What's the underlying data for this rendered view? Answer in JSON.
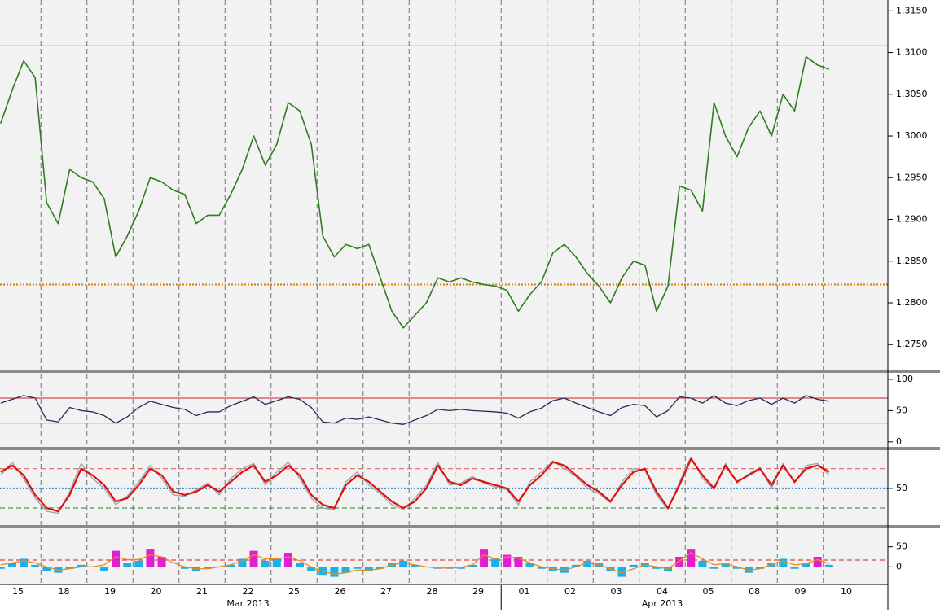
{
  "chart_data": [
    {
      "type": "line",
      "categories": [
        "15",
        null,
        null,
        null,
        "18",
        null,
        null,
        null,
        "19",
        null,
        null,
        null,
        "20",
        null,
        null,
        null,
        "21",
        null,
        null,
        null,
        "22",
        null,
        null,
        null,
        "25",
        null,
        null,
        null,
        "26",
        null,
        null,
        null,
        "27",
        null,
        null,
        null,
        "28",
        null,
        null,
        null,
        "29",
        null,
        null,
        null,
        "01",
        null,
        null,
        null,
        "02",
        null,
        null,
        null,
        "03",
        null,
        null,
        null,
        "04",
        null,
        null,
        null,
        "05",
        null,
        null,
        null,
        "08",
        null,
        null,
        null,
        "09",
        null,
        null,
        null,
        "10",
        null,
        null,
        null
      ],
      "month_labels": [
        "Mar 2013",
        "Apr 2013"
      ],
      "series": [
        {
          "color": "#2e7d1e",
          "values": [
            1.3015,
            1.3055,
            1.309,
            1.307,
            1.292,
            1.2895,
            1.296,
            1.295,
            1.2945,
            1.2925,
            1.2855,
            1.288,
            1.291,
            1.295,
            1.2945,
            1.2935,
            1.293,
            1.2895,
            1.2905,
            1.2905,
            1.293,
            1.296,
            1.3,
            1.2965,
            1.299,
            1.304,
            1.303,
            1.299,
            1.288,
            1.2855,
            1.287,
            1.2865,
            1.287,
            1.283,
            1.279,
            1.277,
            1.2785,
            1.28,
            1.283,
            1.2825,
            1.283,
            1.2825,
            1.2822,
            1.282,
            1.2815,
            1.279,
            1.281,
            1.2825,
            1.286,
            1.287,
            1.2855,
            1.2835,
            1.282,
            1.28,
            1.283,
            1.285,
            1.2845,
            1.279,
            1.282,
            1.294,
            1.2935,
            1.291,
            1.304,
            1.3,
            1.2975,
            1.301,
            1.303,
            1.3,
            1.305,
            1.303,
            1.3095,
            1.3085,
            1.308,
            null,
            null,
            null
          ]
        }
      ],
      "hlines": [
        {
          "value": 1.3108,
          "color": "#c00000",
          "style": "solid"
        },
        {
          "value": 1.2822,
          "color": "#e07800",
          "style": "dotted"
        }
      ],
      "ylim": [
        1.2719,
        1.3163
      ],
      "yticks": [
        {
          "value": 1.315,
          "label": "1.3150"
        },
        {
          "value": 1.31,
          "label": "1.3100"
        },
        {
          "value": 1.305,
          "label": "1.3050"
        },
        {
          "value": 1.3,
          "label": "1.3000"
        },
        {
          "value": 1.295,
          "label": "1.2950"
        },
        {
          "value": 1.29,
          "label": "1.2900"
        },
        {
          "value": 1.285,
          "label": "1.2850"
        },
        {
          "value": 1.28,
          "label": "1.2800"
        },
        {
          "value": 1.275,
          "label": "1.2750"
        }
      ]
    },
    {
      "type": "line",
      "series": [
        {
          "color": "#1f2f5a",
          "values": [
            62,
            68,
            74,
            70,
            35,
            32,
            55,
            50,
            48,
            42,
            30,
            40,
            55,
            65,
            60,
            55,
            52,
            42,
            48,
            48,
            58,
            65,
            72,
            60,
            66,
            72,
            68,
            55,
            32,
            30,
            38,
            36,
            40,
            35,
            30,
            28,
            35,
            42,
            52,
            50,
            52,
            50,
            49,
            48,
            46,
            38,
            48,
            54,
            66,
            70,
            62,
            55,
            48,
            42,
            55,
            60,
            58,
            40,
            50,
            72,
            70,
            62,
            74,
            62,
            58,
            66,
            70,
            60,
            70,
            62,
            74,
            68,
            65,
            null,
            null,
            null
          ]
        }
      ],
      "hlines": [
        {
          "value": 70,
          "color": "#d02020",
          "style": "solid"
        },
        {
          "value": 30,
          "color": "#30c030",
          "style": "solid"
        }
      ],
      "ylim": [
        -8,
        109
      ],
      "yticks": [
        100,
        50,
        0
      ]
    },
    {
      "type": "line",
      "series": [
        {
          "color": "#8fa8b0",
          "values": [
            70,
            90,
            65,
            35,
            15,
            12,
            45,
            88,
            65,
            50,
            25,
            38,
            60,
            85,
            65,
            40,
            38,
            48,
            58,
            40,
            65,
            80,
            88,
            55,
            75,
            90,
            65,
            35,
            20,
            18,
            60,
            75,
            55,
            42,
            25,
            18,
            35,
            55,
            90,
            55,
            58,
            68,
            58,
            52,
            48,
            25,
            60,
            75,
            92,
            80,
            68,
            50,
            42,
            28,
            60,
            80,
            78,
            40,
            18,
            60,
            98,
            65,
            48,
            88,
            58,
            72,
            82,
            50,
            88,
            58,
            85,
            88,
            70,
            null,
            null,
            null
          ]
        },
        {
          "color": "#e01010",
          "values": [
            75,
            85,
            70,
            40,
            20,
            15,
            40,
            80,
            70,
            55,
            30,
            35,
            55,
            80,
            70,
            45,
            40,
            45,
            55,
            45,
            60,
            75,
            85,
            60,
            70,
            85,
            70,
            40,
            25,
            20,
            55,
            70,
            60,
            45,
            30,
            20,
            30,
            50,
            85,
            60,
            55,
            65,
            60,
            55,
            50,
            30,
            55,
            70,
            90,
            85,
            70,
            55,
            45,
            30,
            55,
            75,
            80,
            45,
            20,
            55,
            95,
            70,
            50,
            85,
            60,
            70,
            80,
            55,
            85,
            60,
            80,
            85,
            75,
            null,
            null,
            null
          ]
        }
      ],
      "hlines": [
        {
          "value": 80,
          "color": "#e05050",
          "style": "dashed"
        },
        {
          "value": 50,
          "color": "#4080c0",
          "style": "dotted"
        },
        {
          "value": 20,
          "color": "#208020",
          "style": "dashed"
        }
      ],
      "ylim": [
        -6,
        107
      ],
      "yticks": [
        50
      ]
    },
    {
      "type": "bar",
      "values": [
        -5,
        10,
        20,
        5,
        -10,
        -15,
        -5,
        5,
        0,
        -10,
        40,
        10,
        15,
        45,
        25,
        0,
        -5,
        -10,
        -5,
        0,
        5,
        20,
        40,
        15,
        20,
        35,
        10,
        -10,
        -20,
        -25,
        -15,
        -5,
        -10,
        -5,
        10,
        15,
        5,
        0,
        -5,
        -5,
        -5,
        5,
        45,
        20,
        30,
        25,
        10,
        -5,
        -10,
        -15,
        5,
        15,
        10,
        -10,
        -25,
        5,
        10,
        -5,
        -10,
        25,
        45,
        15,
        -5,
        10,
        -5,
        -15,
        -5,
        10,
        20,
        -5,
        10,
        25,
        5,
        null,
        null,
        null
      ],
      "color": "#1ab0e8",
      "highlight_above": 20,
      "highlight_color": "#e020d0",
      "series": [
        {
          "color": "#f08a10",
          "values": [
            5,
            10,
            15,
            10,
            0,
            -8,
            -5,
            0,
            0,
            5,
            25,
            18,
            18,
            30,
            25,
            10,
            0,
            -5,
            -5,
            0,
            5,
            15,
            30,
            20,
            20,
            25,
            15,
            0,
            -12,
            -18,
            -15,
            -8,
            -8,
            -5,
            5,
            10,
            5,
            0,
            -3,
            -3,
            -2,
            5,
            30,
            20,
            25,
            22,
            10,
            0,
            -5,
            -8,
            0,
            10,
            5,
            -5,
            -15,
            -5,
            5,
            0,
            -5,
            15,
            35,
            20,
            5,
            8,
            0,
            -8,
            -5,
            5,
            15,
            5,
            8,
            18,
            8,
            null,
            null,
            null
          ]
        }
      ],
      "hlines": [
        {
          "value": 17,
          "color": "#d02020",
          "style": "dashed"
        }
      ],
      "ylim": [
        -44,
        94
      ],
      "yticks": [
        50,
        0
      ]
    }
  ]
}
